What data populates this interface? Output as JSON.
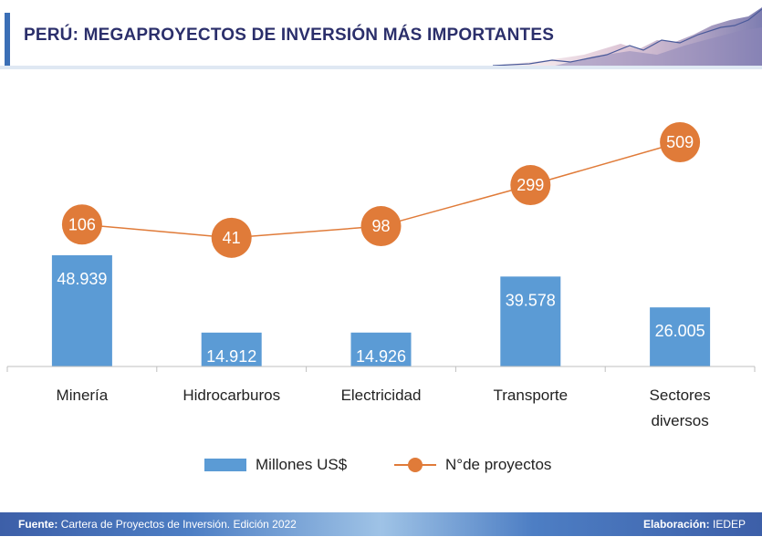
{
  "header": {
    "title": "PERÚ: MEGAPROYECTOS DE INVERSIÓN MÁS IMPORTANTES"
  },
  "chart_data": {
    "type": "bar",
    "categories": [
      "Minería",
      "Hidrocarburos",
      "Electricidad",
      "Transporte",
      "Sectores diversos"
    ],
    "series": [
      {
        "name": "Millones US$",
        "type": "bar",
        "values": [
          48939,
          14912,
          14926,
          39578,
          26005
        ],
        "labels": [
          "48.939",
          "14.912",
          "14.926",
          "39.578",
          "26.005"
        ],
        "color": "#5b9bd5"
      },
      {
        "name": "N°de proyectos",
        "type": "line",
        "values": [
          106,
          41,
          98,
          299,
          509
        ],
        "labels": [
          "106",
          "41",
          "98",
          "299",
          "509"
        ],
        "color": "#e07b39"
      }
    ],
    "legend": [
      "Millones US$",
      "N°de proyectos"
    ]
  },
  "legend": {
    "bars": "Millones US$",
    "line": "N°de proyectos"
  },
  "footer": {
    "source_label": "Fuente:",
    "source_text": "Cartera de Proyectos de Inversión. Edición 2022",
    "elab_label": "Elaboración:",
    "elab_text": "IEDEP"
  },
  "colors": {
    "bar": "#5b9bd5",
    "line": "#e07b39",
    "title": "#2b2f6b",
    "accent": "#3b6fb6"
  }
}
